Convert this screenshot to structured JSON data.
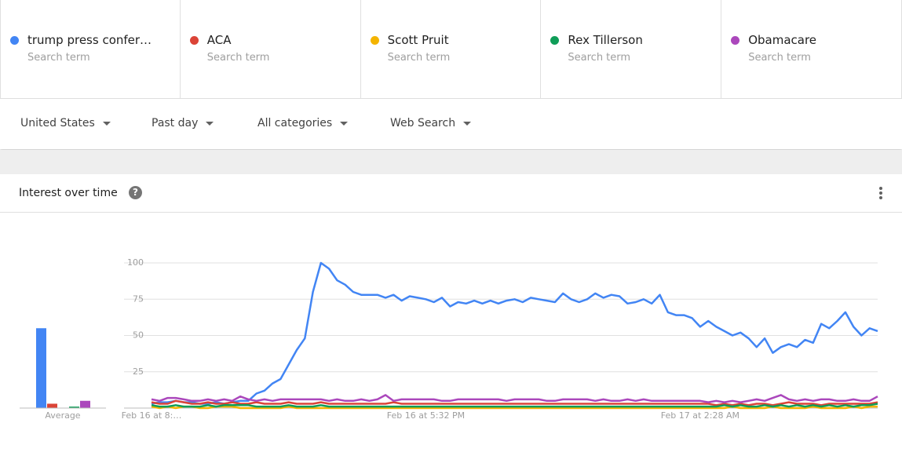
{
  "cards": [
    {
      "subtitle": "Search term"
    },
    {
      "subtitle": "Search term"
    },
    {
      "subtitle": "Search term"
    },
    {
      "subtitle": "Search term"
    },
    {
      "subtitle": "Search term"
    }
  ],
  "filters": [
    "United States",
    "Past day",
    "All categories",
    "Web Search"
  ],
  "panel_title": "Interest over time",
  "chart_data": [
    {
      "type": "line",
      "categories": [
        "Feb 16 at 8:…",
        null,
        null,
        null,
        null,
        null,
        null,
        null,
        null,
        null,
        null,
        null,
        null,
        null,
        null,
        null,
        null,
        null,
        null,
        null,
        null,
        null,
        null,
        null,
        null,
        null,
        null,
        null,
        null,
        null,
        null,
        null,
        null,
        null,
        "Feb 16 at 5:32 PM",
        null,
        null,
        null,
        null,
        null,
        null,
        null,
        null,
        null,
        null,
        null,
        null,
        null,
        null,
        null,
        null,
        null,
        null,
        null,
        null,
        null,
        null,
        null,
        null,
        null,
        null,
        null,
        null,
        null,
        null,
        null,
        null,
        null,
        "Feb 17 at 2:28 AM",
        null,
        null,
        null,
        null,
        null,
        null,
        null,
        null,
        null,
        null,
        null,
        null,
        null,
        null,
        null,
        null,
        null,
        null,
        null,
        null,
        null,
        null
      ],
      "ylim": [
        0,
        100
      ],
      "yticks": [
        25,
        50,
        75,
        100
      ],
      "grid": true,
      "series": [
        {
          "name": "trump press confer…",
          "color": "#4285f4",
          "values": [
            3,
            4,
            4,
            5,
            4,
            4,
            3,
            3,
            4,
            3,
            4,
            5,
            5,
            10,
            12,
            17,
            20,
            30,
            40,
            48,
            80,
            100,
            96,
            88,
            85,
            80,
            78,
            78,
            78,
            76,
            78,
            74,
            77,
            76,
            75,
            73,
            76,
            70,
            73,
            72,
            74,
            72,
            74,
            72,
            74,
            75,
            73,
            76,
            75,
            74,
            73,
            79,
            75,
            73,
            75,
            79,
            76,
            78,
            77,
            72,
            73,
            75,
            72,
            78,
            66,
            64,
            64,
            62,
            56,
            60,
            56,
            53,
            50,
            52,
            48,
            42,
            48,
            38,
            42,
            44,
            42,
            47,
            45,
            58,
            55,
            60,
            66,
            56,
            50,
            55,
            53
          ]
        },
        {
          "name": "ACA",
          "color": "#db4437",
          "values": [
            4,
            3,
            3,
            5,
            4,
            3,
            3,
            4,
            3,
            3,
            4,
            3,
            3,
            4,
            3,
            3,
            3,
            4,
            3,
            3,
            3,
            4,
            3,
            3,
            3,
            3,
            3,
            3,
            3,
            3,
            4,
            3,
            3,
            3,
            3,
            3,
            3,
            3,
            3,
            3,
            3,
            3,
            3,
            3,
            3,
            3,
            3,
            3,
            3,
            3,
            3,
            3,
            3,
            3,
            3,
            3,
            3,
            3,
            3,
            3,
            3,
            3,
            3,
            3,
            3,
            3,
            3,
            3,
            3,
            3,
            2,
            3,
            2,
            3,
            2,
            3,
            3,
            2,
            3,
            4,
            3,
            3,
            3,
            2,
            3,
            3,
            3,
            3,
            3,
            3,
            4
          ]
        },
        {
          "name": "Scott Pruit",
          "color": "#f4b400",
          "values": [
            1,
            0,
            1,
            0,
            1,
            1,
            0,
            0,
            1,
            1,
            1,
            0,
            0,
            0,
            0,
            0,
            0,
            1,
            0,
            0,
            0,
            0,
            0,
            0,
            0,
            0,
            0,
            0,
            0,
            0,
            0,
            0,
            0,
            0,
            0,
            0,
            0,
            0,
            0,
            0,
            0,
            0,
            0,
            0,
            0,
            0,
            0,
            0,
            0,
            0,
            0,
            0,
            0,
            0,
            0,
            0,
            0,
            0,
            0,
            0,
            0,
            0,
            0,
            0,
            0,
            0,
            0,
            0,
            0,
            0,
            0,
            0,
            1,
            0,
            0,
            0,
            0,
            1,
            0,
            0,
            0,
            0,
            1,
            0,
            0,
            0,
            0,
            1,
            0,
            1,
            1
          ]
        },
        {
          "name": "Rex Tillerson",
          "color": "#0f9d58",
          "values": [
            2,
            1,
            1,
            2,
            1,
            1,
            1,
            2,
            1,
            2,
            2,
            2,
            2,
            1,
            1,
            1,
            1,
            2,
            1,
            1,
            1,
            2,
            1,
            1,
            1,
            1,
            1,
            1,
            1,
            1,
            1,
            1,
            1,
            1,
            1,
            1,
            1,
            1,
            1,
            1,
            1,
            1,
            1,
            1,
            1,
            1,
            1,
            1,
            1,
            1,
            1,
            1,
            1,
            1,
            1,
            1,
            1,
            1,
            1,
            1,
            1,
            1,
            1,
            1,
            1,
            1,
            1,
            1,
            1,
            1,
            1,
            2,
            1,
            2,
            1,
            1,
            2,
            1,
            2,
            1,
            2,
            1,
            2,
            1,
            2,
            1,
            2,
            1,
            2,
            2,
            3
          ]
        },
        {
          "name": "Obamacare",
          "color": "#ab47bc",
          "values": [
            6,
            5,
            7,
            7,
            6,
            5,
            5,
            6,
            5,
            6,
            5,
            8,
            6,
            5,
            6,
            5,
            6,
            6,
            6,
            6,
            6,
            6,
            5,
            6,
            5,
            5,
            6,
            5,
            6,
            9,
            5,
            6,
            6,
            6,
            6,
            6,
            5,
            5,
            6,
            6,
            6,
            6,
            6,
            6,
            5,
            6,
            6,
            6,
            6,
            5,
            5,
            6,
            6,
            6,
            6,
            5,
            6,
            5,
            5,
            6,
            5,
            6,
            5,
            5,
            5,
            5,
            5,
            5,
            5,
            4,
            5,
            4,
            5,
            4,
            5,
            6,
            5,
            7,
            9,
            6,
            5,
            6,
            5,
            6,
            6,
            5,
            5,
            6,
            5,
            5,
            8
          ]
        }
      ]
    },
    {
      "type": "bar",
      "categories": [
        "Average"
      ],
      "ylim": [
        0,
        100
      ],
      "series": [
        {
          "color": "#4285f4",
          "values": [
            55
          ]
        },
        {
          "color": "#db4437",
          "values": [
            3
          ]
        },
        {
          "color": "#f4b400",
          "values": [
            0
          ]
        },
        {
          "color": "#0f9d58",
          "values": [
            1
          ]
        },
        {
          "color": "#ab47bc",
          "values": [
            5
          ]
        }
      ]
    }
  ]
}
